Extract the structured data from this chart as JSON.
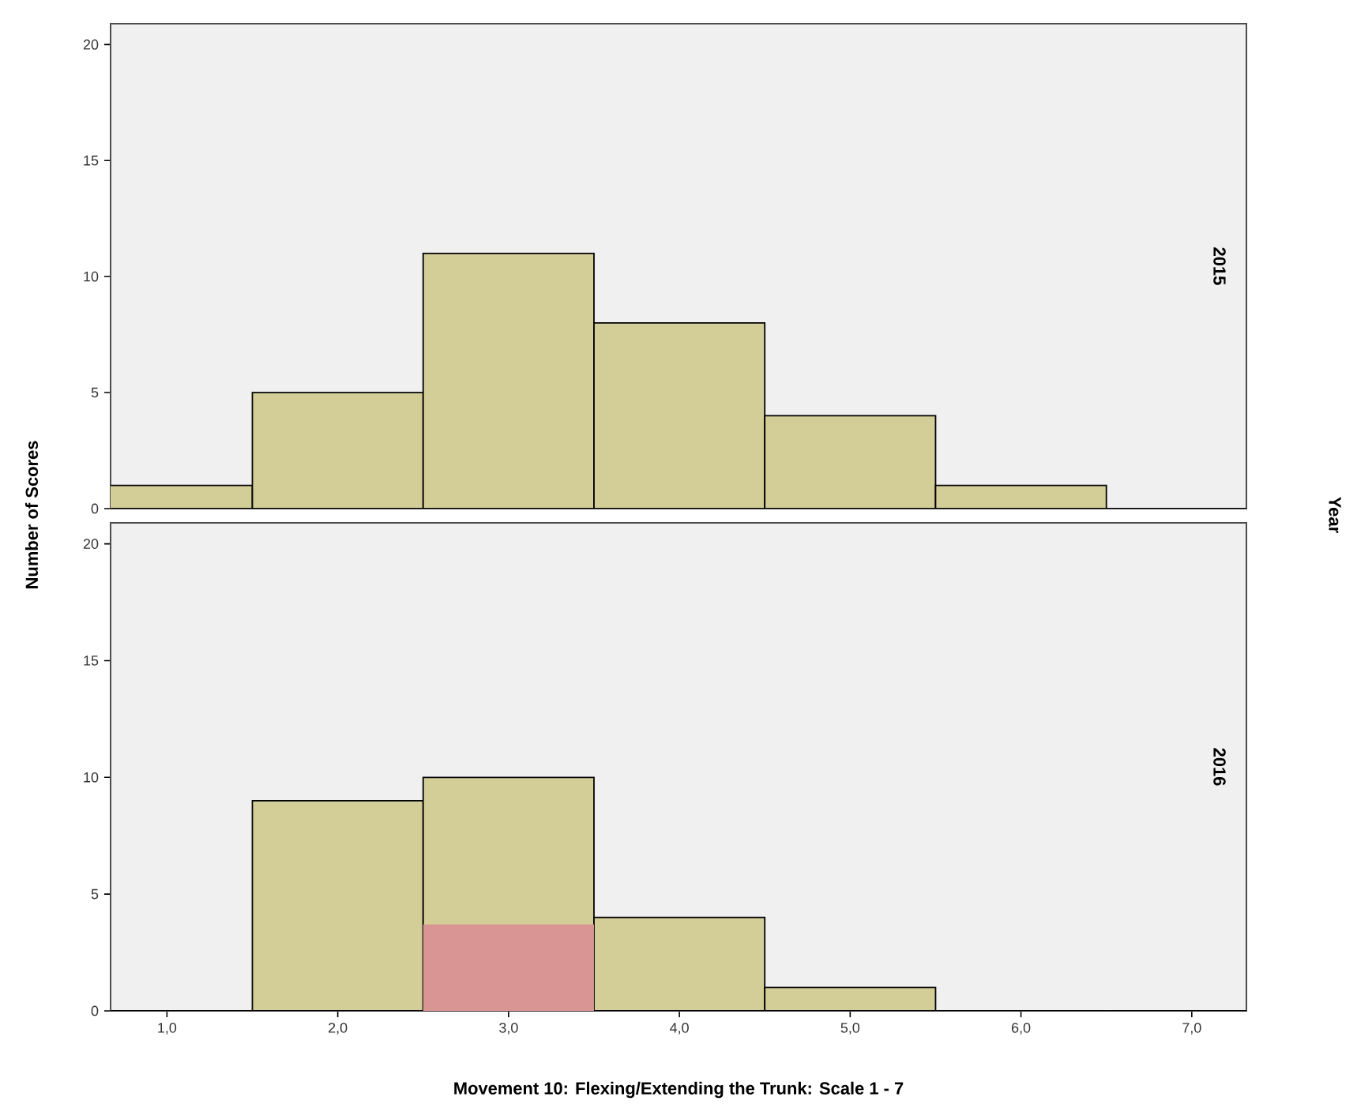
{
  "chart_data": [
    {
      "type": "bar",
      "title": "2015",
      "ylabel": "Number of Scores",
      "y2label": "Year",
      "categories": [
        "1,0",
        "2,0",
        "3,0",
        "4,0",
        "5,0",
        "6,0",
        "7,0"
      ],
      "series": [
        {
          "color": "#d3ce98",
          "values": [
            1,
            5,
            11,
            8,
            4,
            1,
            0
          ]
        }
      ],
      "ylim": [
        0,
        20.9
      ],
      "yticks": [
        0,
        5,
        10,
        15,
        20
      ],
      "tick_labels": "y"
    },
    {
      "type": "bar",
      "title": "2016",
      "xlabel": "Movement 10: Flexing/Extending the Trunk: Scale 1 - 7",
      "categories": [
        "1,0",
        "2,0",
        "3,0",
        "4,0",
        "5,0",
        "6,0",
        "7,0"
      ],
      "series": [
        {
          "color": "#d3ce98",
          "values": [
            0,
            9,
            10,
            4,
            1,
            0,
            0
          ]
        },
        {
          "color": "#d99594",
          "values": [
            null,
            null,
            3.7,
            null,
            null,
            null,
            null
          ]
        }
      ],
      "ylim": [
        0,
        20.9
      ],
      "yticks": [
        0,
        5,
        10,
        15,
        20
      ]
    }
  ]
}
